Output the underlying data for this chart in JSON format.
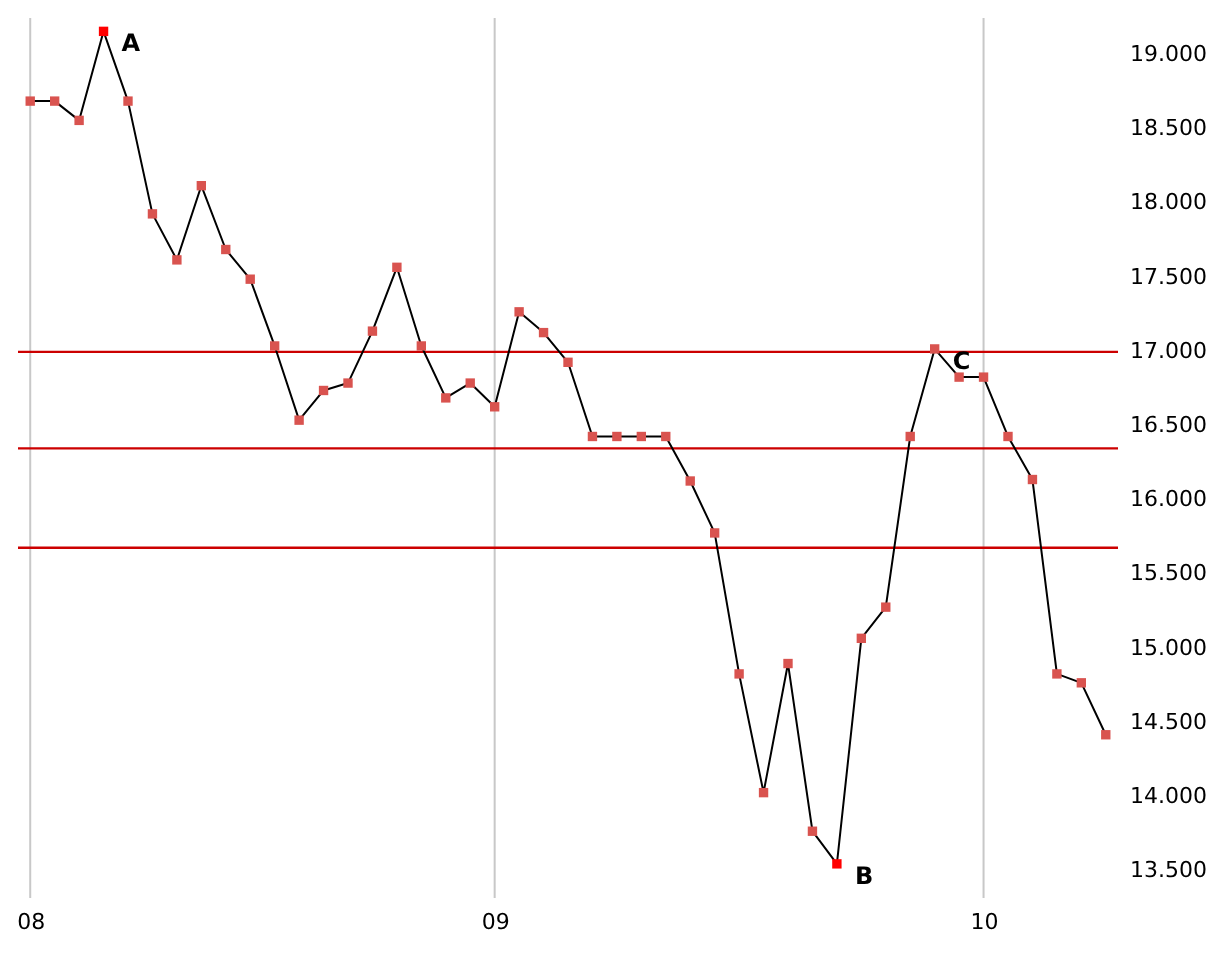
{
  "chart_data": {
    "type": "line",
    "marker": "square",
    "line_style": "solid",
    "grid": "x",
    "categories": [
      "08",
      null,
      null,
      null,
      null,
      null,
      null,
      null,
      null,
      null,
      null,
      null,
      null,
      null,
      null,
      null,
      null,
      null,
      null,
      "09",
      null,
      null,
      null,
      null,
      null,
      null,
      null,
      null,
      null,
      null,
      null,
      null,
      null,
      null,
      null,
      null,
      null,
      null,
      null,
      "10",
      null,
      null,
      null,
      null,
      null
    ],
    "series": [
      {
        "color": "#000000",
        "colors": [
          "#d9534f",
          "#d9534f",
          "#d9534f",
          "#ff0000",
          "#d9534f",
          "#d9534f",
          "#d9534f",
          "#d9534f",
          "#d9534f",
          "#d9534f",
          "#d9534f",
          "#d9534f",
          "#d9534f",
          "#d9534f",
          "#d9534f",
          "#d9534f",
          "#d9534f",
          "#d9534f",
          "#d9534f",
          "#d9534f",
          "#d9534f",
          "#d9534f",
          "#d9534f",
          "#d9534f",
          "#d9534f",
          "#d9534f",
          "#d9534f",
          "#d9534f",
          "#d9534f",
          "#d9534f",
          "#d9534f",
          "#d9534f",
          "#d9534f",
          "#ff0000",
          "#d9534f",
          "#d9534f",
          "#d9534f",
          "#d9534f",
          "#d9534f",
          "#d9534f",
          "#d9534f",
          "#d9534f",
          "#d9534f",
          "#d9534f",
          "#d9534f"
        ],
        "values": [
          18.69,
          18.69,
          18.56,
          19.16,
          18.69,
          17.93,
          17.62,
          18.12,
          17.69,
          17.49,
          17.04,
          16.54,
          16.74,
          16.79,
          17.14,
          17.57,
          17.04,
          16.69,
          16.79,
          16.63,
          17.27,
          17.13,
          16.93,
          16.43,
          16.43,
          16.43,
          16.43,
          16.13,
          15.78,
          14.83,
          14.03,
          14.9,
          13.77,
          13.55,
          15.07,
          15.28,
          16.43,
          17.02,
          16.83,
          16.83,
          16.43,
          16.14,
          14.83,
          14.77,
          14.42
        ]
      }
    ],
    "ylim": [
      13.32,
      19.25
    ],
    "yticks": [
      {
        "value": 13.5,
        "label": "13.500"
      },
      {
        "value": 14,
        "label": "14.000"
      },
      {
        "value": 14.5,
        "label": "14.500"
      },
      {
        "value": 15,
        "label": "15.000"
      },
      {
        "value": 15.5,
        "label": "15.500"
      },
      {
        "value": 16,
        "label": "16.000"
      },
      {
        "value": 16.5,
        "label": "16.500"
      },
      {
        "value": 17,
        "label": "17.000"
      },
      {
        "value": 17.5,
        "label": "17.500"
      },
      {
        "value": 18,
        "label": "18.000"
      },
      {
        "value": 18.5,
        "label": "18.500"
      },
      {
        "value": 19,
        "label": "19.000"
      }
    ],
    "ref_lines": [
      {
        "axis": "y",
        "value": 17.0,
        "color": "#cc0000"
      },
      {
        "axis": "y",
        "value": 16.35,
        "color": "#cc0000"
      },
      {
        "axis": "y",
        "value": 15.68,
        "color": "#cc0000"
      }
    ],
    "annotations": [
      "A",
      "B",
      "C"
    ]
  }
}
